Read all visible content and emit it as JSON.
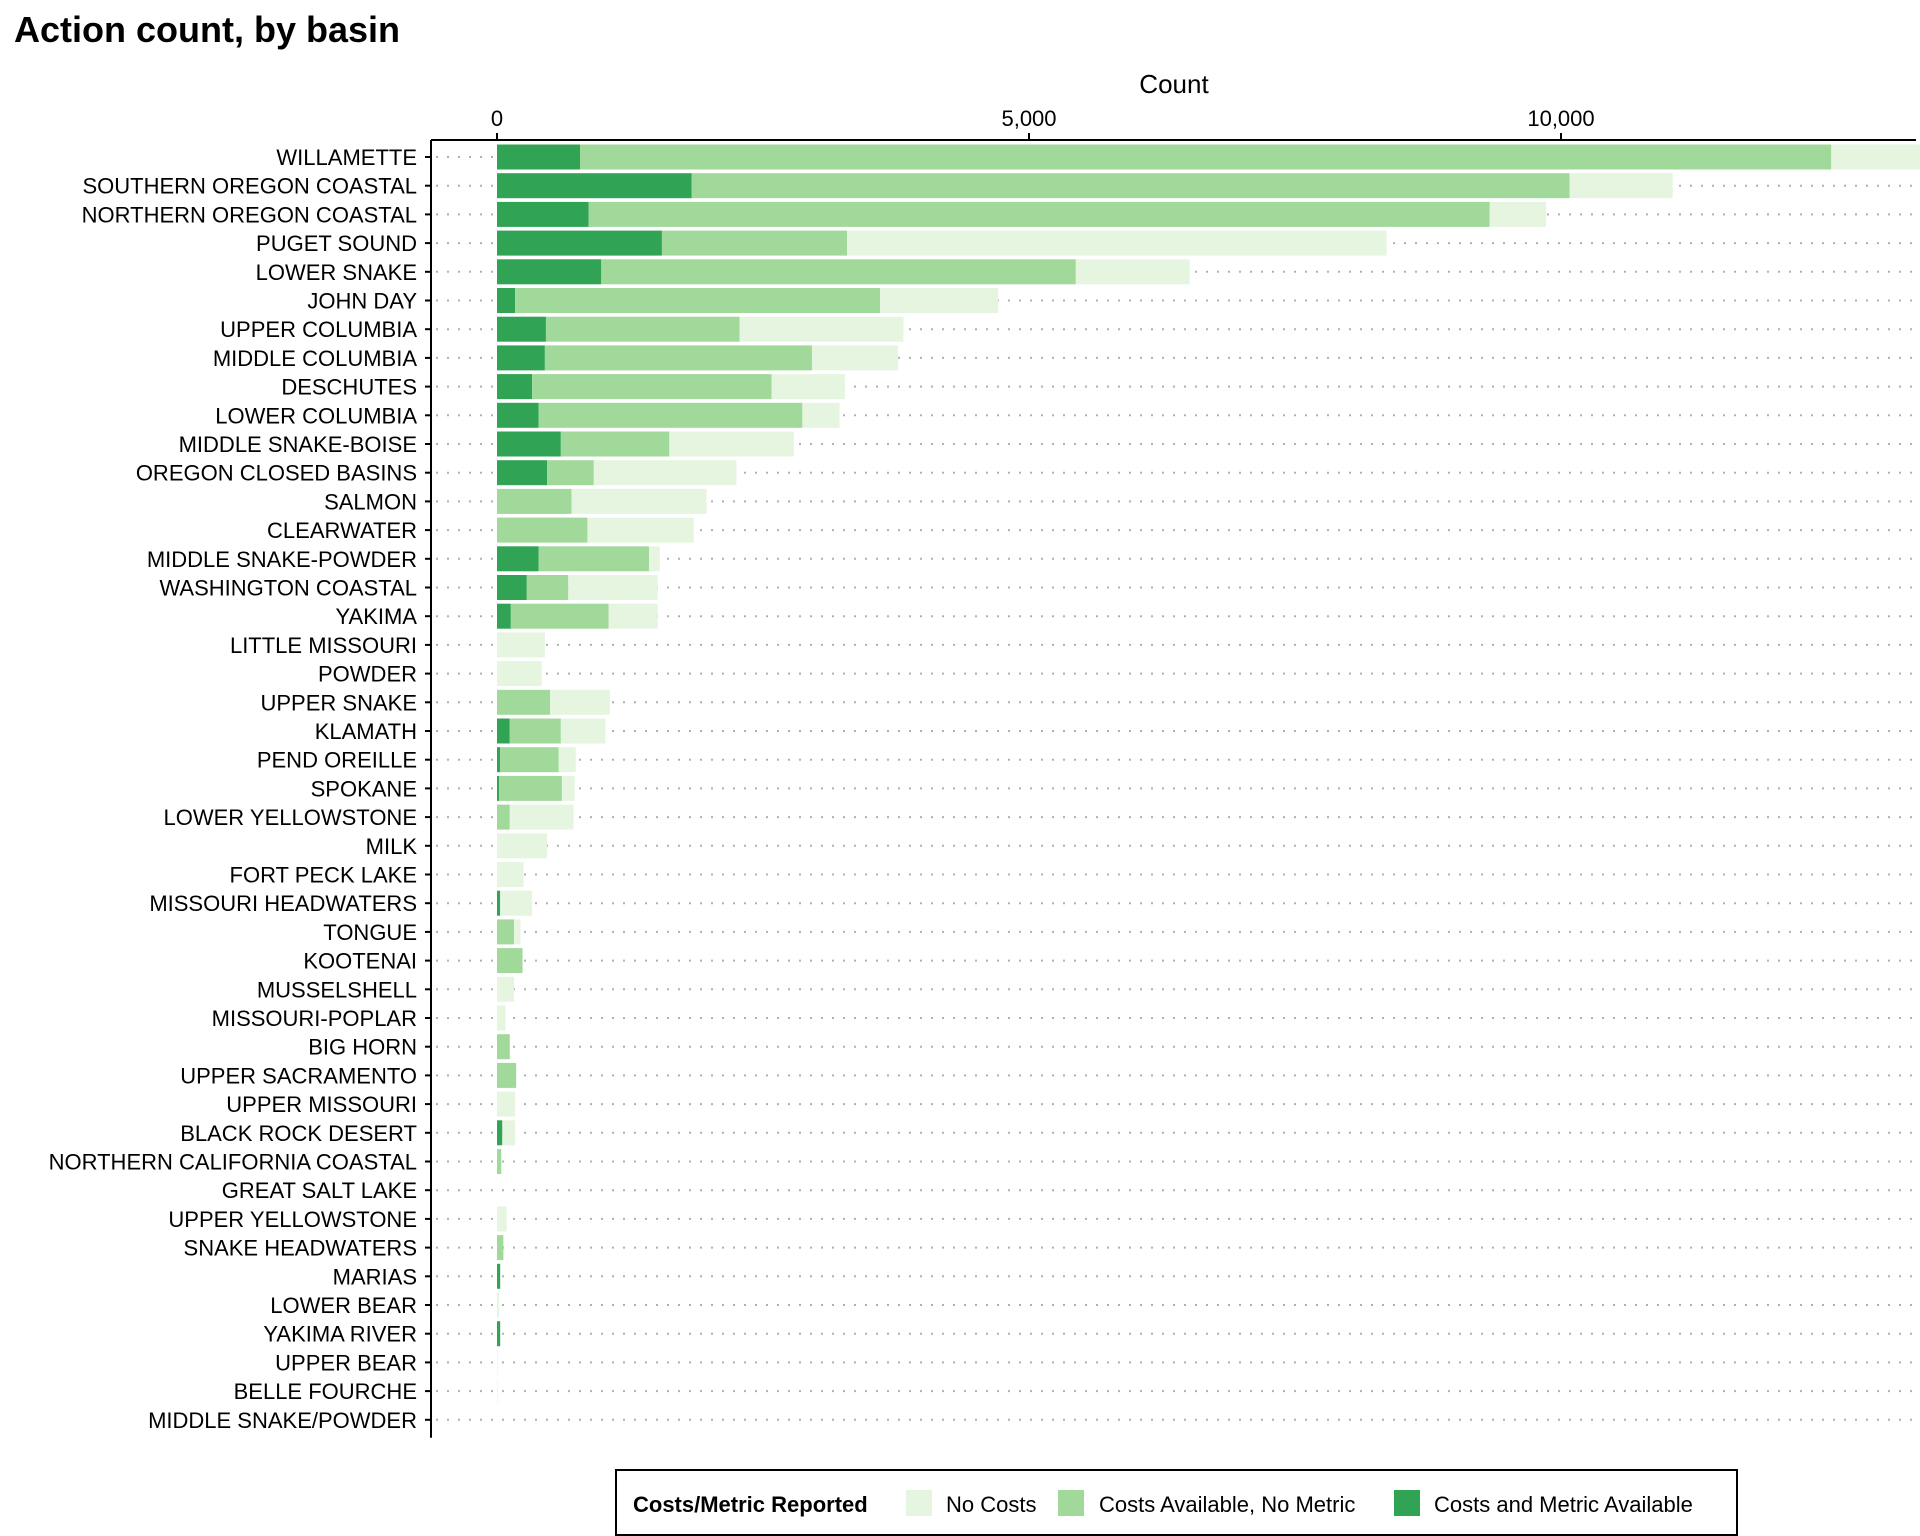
{
  "chart_data": {
    "type": "bar",
    "orientation": "horizontal",
    "stacked": true,
    "title": "Action count, by basin",
    "xlabel": "Count",
    "ylabel": "",
    "xlim": [
      0,
      13200
    ],
    "x_ticks": [
      0,
      5000,
      10000
    ],
    "x_tick_labels": [
      "0",
      "5,000",
      "10,000"
    ],
    "grid": "dotted horizontal",
    "legend": {
      "title": "Costs/Metric Reported",
      "placement": "bottom",
      "entries": [
        "No Costs",
        "Costs Available, No Metric",
        "Costs and Metric Available"
      ]
    },
    "colors": {
      "Costs and Metric Available": "#31a354",
      "Costs Available, No Metric": "#a1d99b",
      "No Costs": "#e5f5e0"
    },
    "categories": [
      "WILLAMETTE",
      "SOUTHERN OREGON COASTAL",
      "NORTHERN OREGON COASTAL",
      "PUGET SOUND",
      "LOWER SNAKE",
      "JOHN DAY",
      "UPPER COLUMBIA",
      "MIDDLE COLUMBIA",
      "DESCHUTES",
      "LOWER COLUMBIA",
      "MIDDLE SNAKE-BOISE",
      "OREGON CLOSED BASINS",
      "SALMON",
      "CLEARWATER",
      "MIDDLE SNAKE-POWDER",
      "WASHINGTON COASTAL",
      "YAKIMA",
      "LITTLE MISSOURI",
      "POWDER",
      "UPPER SNAKE",
      "KLAMATH",
      "PEND OREILLE",
      "SPOKANE",
      "LOWER YELLOWSTONE",
      "MILK",
      "FORT PECK LAKE",
      "MISSOURI HEADWATERS",
      "TONGUE",
      "KOOTENAI",
      "MUSSELSHELL",
      "MISSOURI-POPLAR",
      "BIG HORN",
      "UPPER SACRAMENTO",
      "UPPER MISSOURI",
      "BLACK ROCK DESERT",
      "NORTHERN CALIFORNIA COASTAL",
      "GREAT SALT LAKE",
      "UPPER YELLOWSTONE",
      "SNAKE HEADWATERS",
      "MARIAS",
      "LOWER BEAR",
      "YAKIMA RIVER",
      "UPPER BEAR",
      "BELLE FOURCHE",
      "MIDDLE SNAKE/POWDER"
    ],
    "series": [
      {
        "name": "Costs and Metric Available",
        "values": [
          780,
          1830,
          860,
          1550,
          980,
          170,
          460,
          450,
          330,
          390,
          600,
          470,
          0,
          0,
          390,
          280,
          130,
          0,
          0,
          0,
          120,
          30,
          20,
          0,
          0,
          0,
          30,
          0,
          0,
          0,
          0,
          0,
          0,
          0,
          50,
          0,
          0,
          0,
          0,
          30,
          0,
          30,
          0,
          0,
          0
        ]
      },
      {
        "name": "Costs Available, No Metric",
        "values": [
          11760,
          8250,
          8470,
          1740,
          4460,
          3430,
          1820,
          2510,
          2250,
          2480,
          1020,
          440,
          700,
          850,
          1040,
          390,
          920,
          0,
          0,
          500,
          480,
          550,
          590,
          120,
          0,
          0,
          0,
          160,
          240,
          0,
          0,
          120,
          180,
          0,
          0,
          40,
          0,
          0,
          60,
          0,
          0,
          0,
          0,
          0,
          0
        ]
      },
      {
        "name": "No Costs",
        "values": [
          930,
          970,
          530,
          5070,
          1070,
          1110,
          1540,
          810,
          690,
          350,
          1170,
          1340,
          1270,
          1000,
          100,
          840,
          460,
          450,
          420,
          560,
          420,
          160,
          120,
          600,
          470,
          250,
          300,
          60,
          0,
          160,
          80,
          0,
          0,
          170,
          120,
          0,
          0,
          90,
          0,
          0,
          20,
          0,
          5,
          5,
          0
        ]
      }
    ]
  }
}
